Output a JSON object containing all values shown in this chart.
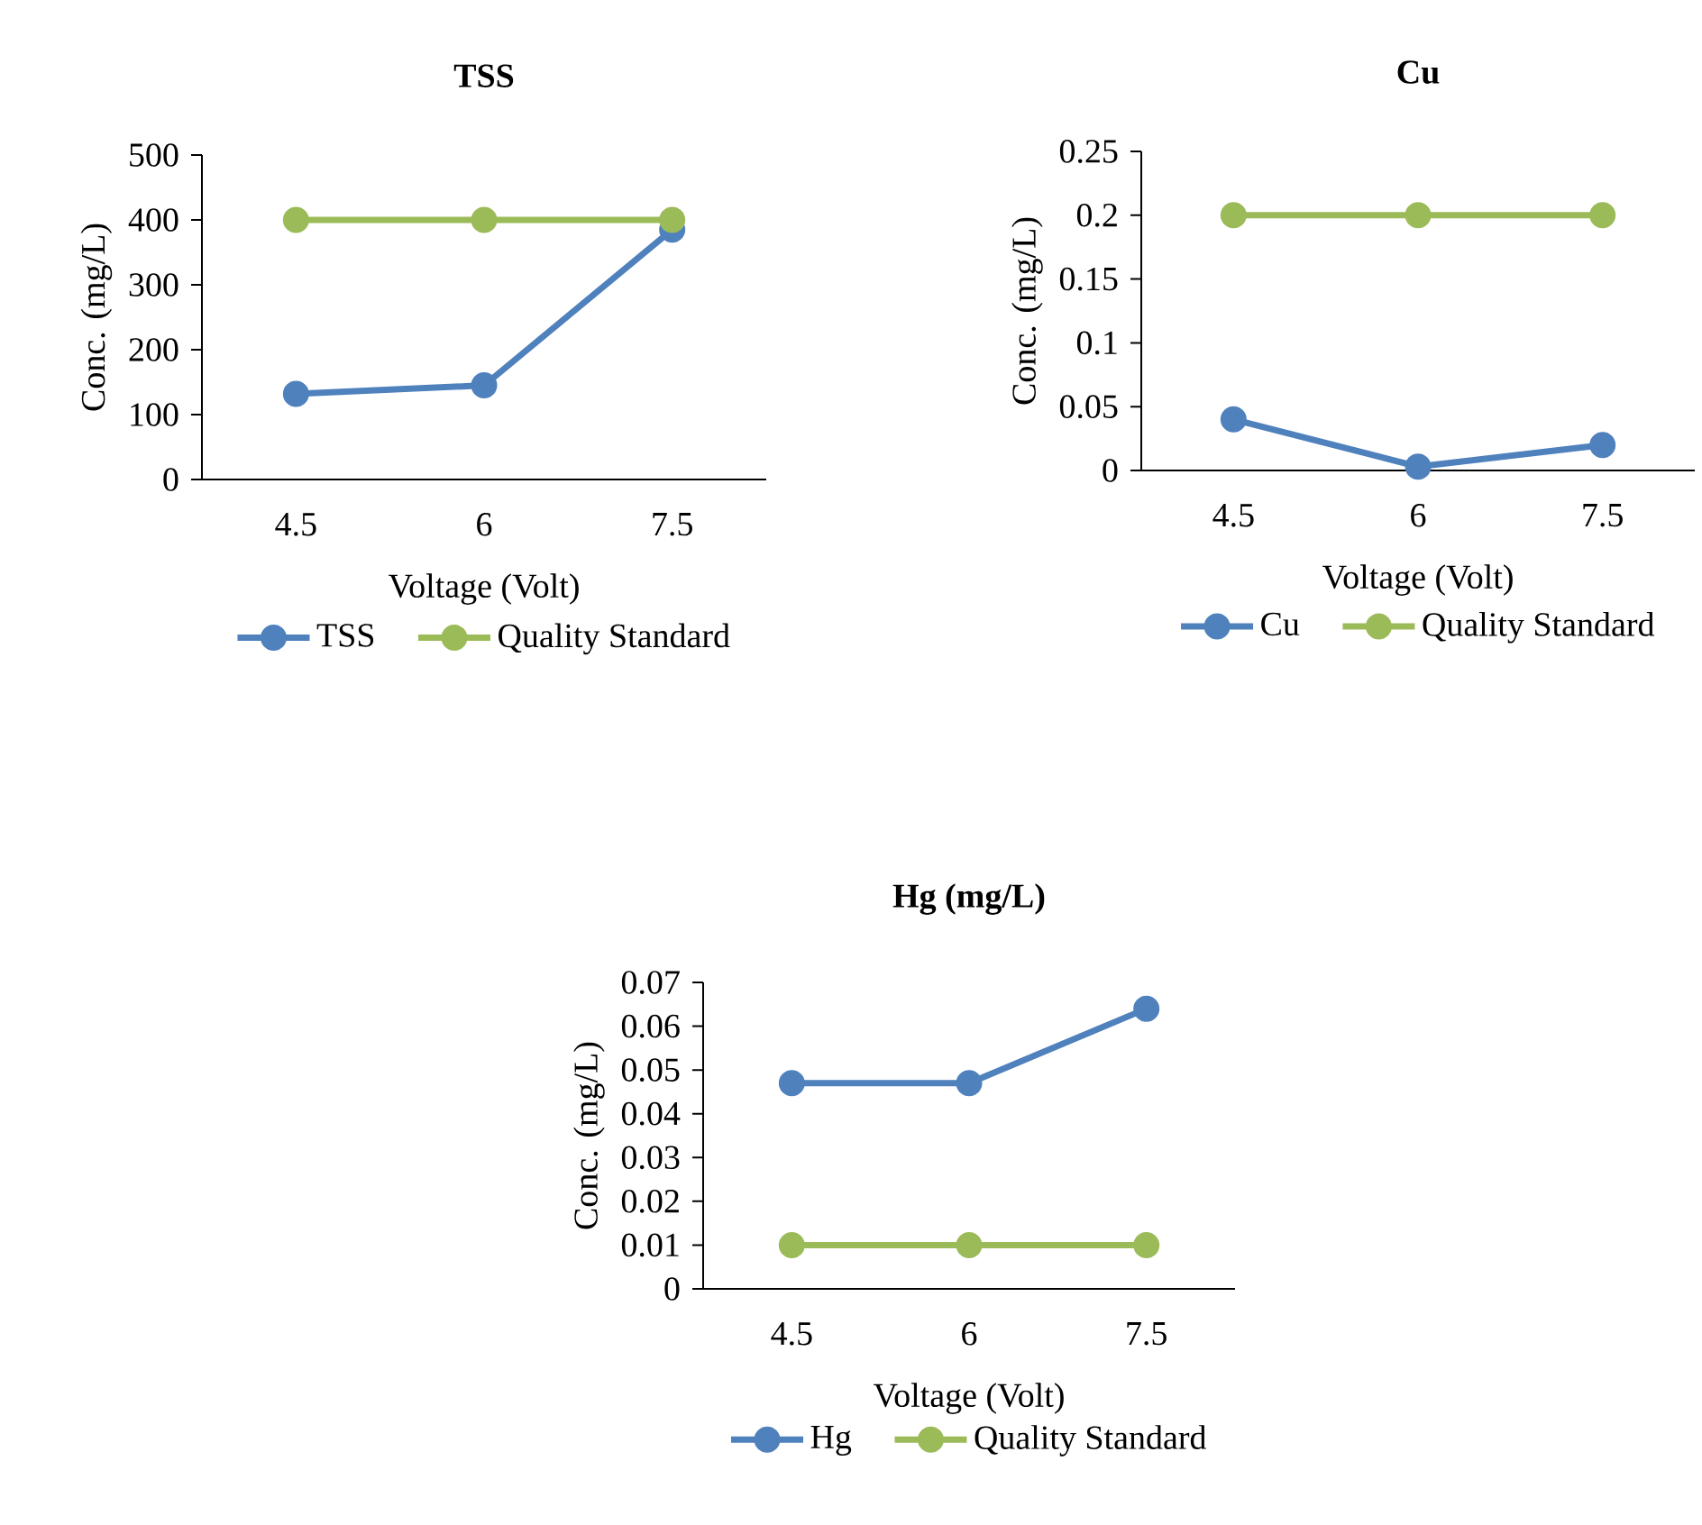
{
  "chart_data": [
    {
      "type": "line",
      "title": "TSS",
      "xlabel": "Voltage (Volt)",
      "ylabel": "Conc. (mg/L)",
      "categories": [
        "4.5",
        "6",
        "7.5"
      ],
      "series": [
        {
          "name": "TSS",
          "color": "#4f81bd",
          "values": [
            132,
            145,
            385
          ]
        },
        {
          "name": "Quality Standard",
          "color": "#9bbb59",
          "values": [
            400,
            400,
            400
          ]
        }
      ],
      "ylim": [
        0,
        500
      ],
      "yticks": [
        0,
        100,
        200,
        300,
        400,
        500
      ],
      "legend": "bottom",
      "marker": "circle",
      "line_style": "solid",
      "grid": false
    },
    {
      "type": "line",
      "title": "Cu",
      "xlabel": "Voltage (Volt)",
      "ylabel": "Conc. (mg/L)",
      "categories": [
        "4.5",
        "6",
        "7.5"
      ],
      "series": [
        {
          "name": "Cu",
          "color": "#4f81bd",
          "values": [
            0.04,
            0.003,
            0.02
          ]
        },
        {
          "name": "Quality Standard",
          "color": "#9bbb59",
          "values": [
            0.2,
            0.2,
            0.2
          ]
        }
      ],
      "ylim": [
        0,
        0.25
      ],
      "yticks": [
        0,
        0.05,
        0.1,
        0.15,
        0.2,
        0.25
      ],
      "legend": "bottom",
      "marker": "circle",
      "line_style": "solid",
      "grid": false
    },
    {
      "type": "line",
      "title": "Hg (mg/L)",
      "xlabel": "Voltage (Volt)",
      "ylabel": "Conc. (mg/L)",
      "categories": [
        "4.5",
        "6",
        "7.5"
      ],
      "series": [
        {
          "name": "Hg",
          "color": "#4f81bd",
          "values": [
            0.047,
            0.047,
            0.064
          ]
        },
        {
          "name": "Quality Standard",
          "color": "#9bbb59",
          "values": [
            0.01,
            0.01,
            0.01
          ]
        }
      ],
      "ylim": [
        0,
        0.07
      ],
      "yticks": [
        0,
        0.01,
        0.02,
        0.03,
        0.04,
        0.05,
        0.06,
        0.07
      ],
      "legend": "bottom",
      "marker": "circle",
      "line_style": "solid",
      "grid": false
    }
  ]
}
